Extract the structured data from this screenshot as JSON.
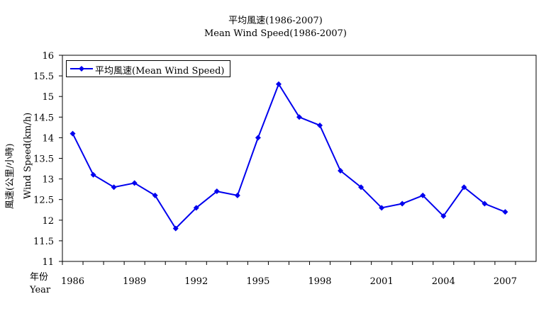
{
  "titles": {
    "line1": "平均風速(1986-2007)",
    "line2": "Mean Wind Speed(1986-2007)"
  },
  "colors": {
    "series": "#0000ee",
    "axis": "#000000"
  },
  "chart_data": {
    "type": "line",
    "title": "平均風速(1986-2007) / Mean Wind Speed(1986-2007)",
    "xlabel_cn": "年份",
    "xlabel_en": "Year",
    "ylabel_cn": "風速(公里/小時)",
    "ylabel_en": "Wind Speed(km/h)",
    "ylim": [
      11,
      16
    ],
    "ytick_labels": [
      "11",
      "11.5",
      "12",
      "12.5",
      "13",
      "13.5",
      "14",
      "14.5",
      "15",
      "15.5",
      "16"
    ],
    "xtick_labels": [
      "1986",
      "1989",
      "1992",
      "1995",
      "1998",
      "2001",
      "2004",
      "2007"
    ],
    "legend_position": "top-left",
    "series": [
      {
        "name": "平均風速(Mean Wind Speed)",
        "x": [
          1986,
          1987,
          1988,
          1989,
          1990,
          1991,
          1992,
          1993,
          1994,
          1995,
          1996,
          1997,
          1998,
          1999,
          2000,
          2001,
          2002,
          2003,
          2004,
          2005,
          2006,
          2007
        ],
        "values": [
          14.1,
          13.1,
          12.8,
          12.9,
          12.6,
          11.8,
          12.3,
          12.7,
          12.6,
          14.0,
          15.3,
          14.5,
          14.3,
          13.2,
          12.8,
          12.3,
          12.4,
          12.6,
          12.1,
          12.8,
          12.4,
          12.2
        ]
      }
    ]
  }
}
